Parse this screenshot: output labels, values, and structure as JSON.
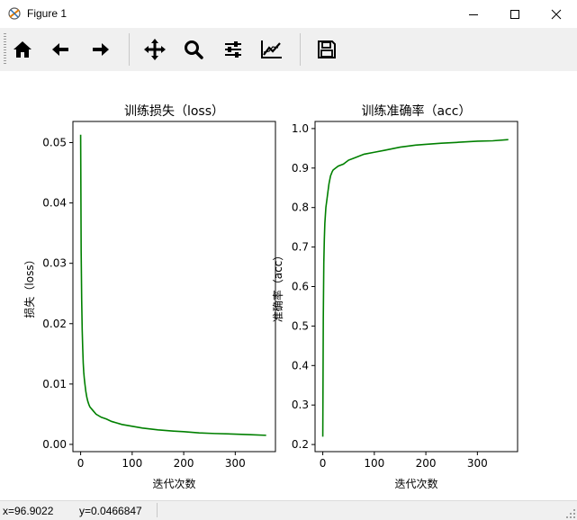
{
  "window": {
    "title": "Figure 1",
    "controls": [
      "minimize",
      "maximize",
      "close"
    ]
  },
  "toolbar": {
    "buttons": [
      {
        "name": "home",
        "icon": "home-icon"
      },
      {
        "name": "back",
        "icon": "arrow-left-icon"
      },
      {
        "name": "forward",
        "icon": "arrow-right-icon"
      },
      {
        "name": "pan",
        "icon": "move-icon"
      },
      {
        "name": "zoom",
        "icon": "magnifier-icon"
      },
      {
        "name": "configure-subplots",
        "icon": "sliders-icon"
      },
      {
        "name": "edit-axis",
        "icon": "line-chart-icon"
      },
      {
        "name": "save",
        "icon": "floppy-disk-icon"
      }
    ]
  },
  "status": {
    "x_readout": "x=96.9022",
    "y_readout": "y=0.0466847"
  },
  "colors": {
    "line": "#008000",
    "toolbar_bg": "#f0f0f0"
  },
  "chart_data": [
    {
      "type": "line",
      "title": "训练损失（loss）",
      "xlabel": "迭代次数",
      "ylabel": "损失（loss）",
      "xlim": [
        -15,
        378
      ],
      "ylim": [
        -0.0012,
        0.0535
      ],
      "xticks": [
        0,
        100,
        200,
        300
      ],
      "xtick_labels": [
        "0",
        "100",
        "200",
        "300"
      ],
      "yticks": [
        0.0,
        0.01,
        0.02,
        0.03,
        0.04,
        0.05
      ],
      "ytick_labels": [
        "0.00",
        "0.01",
        "0.02",
        "0.03",
        "0.04",
        "0.05"
      ],
      "series": [
        {
          "color": "#008000",
          "x": [
            0,
            1,
            2,
            3,
            4,
            5,
            6,
            7,
            8,
            9,
            10,
            12,
            14,
            16,
            18,
            20,
            25,
            30,
            40,
            50,
            60,
            80,
            100,
            120,
            150,
            180,
            200,
            230,
            260,
            300,
            330,
            360
          ],
          "y": [
            0.0513,
            0.032,
            0.024,
            0.019,
            0.016,
            0.0135,
            0.012,
            0.011,
            0.0102,
            0.0095,
            0.0088,
            0.0078,
            0.0071,
            0.0066,
            0.0062,
            0.006,
            0.0055,
            0.005,
            0.0045,
            0.0042,
            0.0038,
            0.0033,
            0.003,
            0.0027,
            0.0024,
            0.0022,
            0.0021,
            0.0019,
            0.0018,
            0.0017,
            0.0016,
            0.0015
          ]
        }
      ]
    },
    {
      "type": "line",
      "title": "训练准确率（acc）",
      "xlabel": "迭代次数",
      "ylabel": "准确率（acc）",
      "xlim": [
        -15,
        378
      ],
      "ylim": [
        0.182,
        1.018
      ],
      "xticks": [
        0,
        100,
        200,
        300
      ],
      "xtick_labels": [
        "0",
        "100",
        "200",
        "300"
      ],
      "yticks": [
        0.2,
        0.3,
        0.4,
        0.5,
        0.6,
        0.7,
        0.8,
        0.9,
        1.0
      ],
      "ytick_labels": [
        "0.2",
        "0.3",
        "0.4",
        "0.5",
        "0.6",
        "0.7",
        "0.8",
        "0.9",
        "1.0"
      ],
      "series": [
        {
          "color": "#008000",
          "x": [
            0,
            1,
            2,
            3,
            4,
            5,
            6,
            8,
            10,
            12,
            15,
            18,
            20,
            25,
            30,
            40,
            50,
            60,
            80,
            100,
            120,
            150,
            180,
            200,
            230,
            260,
            300,
            330,
            360
          ],
          "y": [
            0.22,
            0.52,
            0.66,
            0.72,
            0.76,
            0.78,
            0.8,
            0.82,
            0.84,
            0.86,
            0.88,
            0.89,
            0.895,
            0.9,
            0.905,
            0.91,
            0.92,
            0.925,
            0.935,
            0.94,
            0.945,
            0.953,
            0.958,
            0.96,
            0.963,
            0.965,
            0.968,
            0.969,
            0.972
          ]
        }
      ]
    }
  ]
}
